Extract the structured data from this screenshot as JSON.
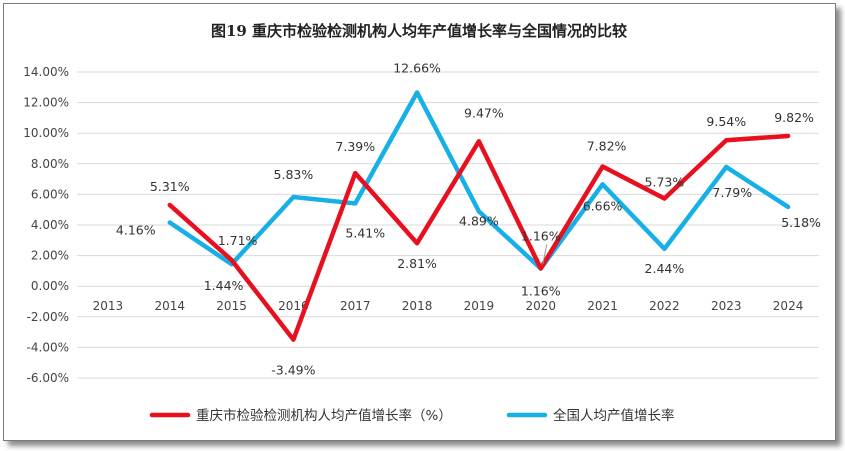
{
  "chart_data": {
    "type": "line",
    "title": "图19  重庆市检验检测机构人均年产值增长率与全国情况的比较",
    "categories": [
      "2013",
      "2014",
      "2015",
      "2016",
      "2017",
      "2018",
      "2019",
      "2020",
      "2021",
      "2022",
      "2023",
      "2024"
    ],
    "ylim": [
      -6,
      14
    ],
    "yticks": [
      "14.00%",
      "12.00%",
      "10.00%",
      "8.00%",
      "6.00%",
      "4.00%",
      "2.00%",
      "0.00%",
      "-2.00%",
      "-4.00%",
      "-6.00%"
    ],
    "series": [
      {
        "name": "重庆市检验检测机构人均产值增长率（%）",
        "color": "#e8101f",
        "values": [
          null,
          5.31,
          1.71,
          -3.49,
          7.39,
          2.81,
          9.47,
          1.16,
          7.82,
          5.73,
          9.54,
          9.82
        ],
        "labels": [
          "",
          "5.31%",
          "1.71%",
          "-3.49%",
          "7.39%",
          "2.81%",
          "9.47%",
          "1.16%",
          "7.82%",
          "5.73%",
          "9.54%",
          "9.82%"
        ]
      },
      {
        "name": "全国人均产值增长率",
        "color": "#17b0e6",
        "values": [
          null,
          4.16,
          1.44,
          5.83,
          5.41,
          12.66,
          4.89,
          1.16,
          6.66,
          2.44,
          7.79,
          5.18
        ],
        "labels": [
          "",
          "4.16%",
          "1.44%",
          "5.83%",
          "5.41%",
          "12.66%",
          "4.89%",
          "1.16%",
          "6.66%",
          "2.44%",
          "7.79%",
          "5.18%"
        ]
      }
    ]
  }
}
